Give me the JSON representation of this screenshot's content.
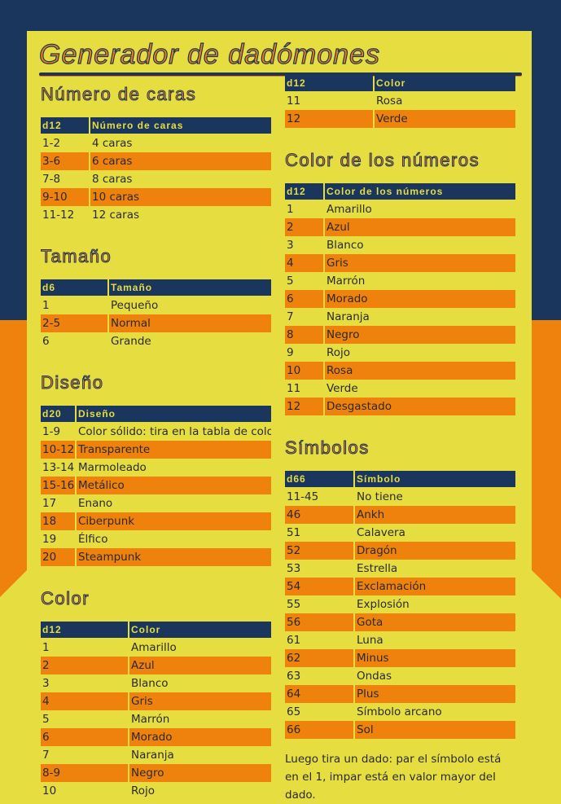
{
  "title": "Generador de dadómones",
  "colors": {
    "navy": "#1b365d",
    "orange": "#ef820d",
    "yellow": "#e6de40"
  },
  "left": [
    {
      "heading": "Número de caras",
      "c1w": 59,
      "headers": [
        "d12",
        "Número de caras"
      ],
      "rows": [
        [
          "1-2",
          "4 caras"
        ],
        [
          "3-6",
          "6 caras"
        ],
        [
          "7-8",
          "8 caras"
        ],
        [
          "9-10",
          "10 caras"
        ],
        [
          "11-12",
          "12 caras"
        ]
      ]
    },
    {
      "heading": "Tamaño",
      "c1w": 82,
      "headers": [
        "d6",
        "Tamaño"
      ],
      "rows": [
        [
          "1",
          "Pequeño"
        ],
        [
          "2-5",
          "Normal"
        ],
        [
          "6",
          "Grande"
        ]
      ]
    },
    {
      "heading": "Diseño",
      "c1w": 42,
      "headers": [
        "d20",
        "Diseño"
      ],
      "rows": [
        [
          "1-9",
          "Color sólido: tira en la tabla de color."
        ],
        [
          "10-12",
          "Transparente"
        ],
        [
          "13-14",
          "Marmoleado"
        ],
        [
          "15-16",
          "Metálico"
        ],
        [
          "17",
          "Enano"
        ],
        [
          "18",
          "Ciberpunk"
        ],
        [
          "19",
          "Élfico"
        ],
        [
          "20",
          "Steampunk"
        ]
      ]
    },
    {
      "heading": "Color",
      "c1w": 107,
      "headers": [
        "d12",
        "Color"
      ],
      "rows": [
        [
          "1",
          "Amarillo"
        ],
        [
          "2",
          "Azul"
        ],
        [
          "3",
          "Blanco"
        ],
        [
          "4",
          "Gris"
        ],
        [
          "5",
          "Marrón"
        ],
        [
          "6",
          "Morado"
        ],
        [
          "7",
          "Naranja"
        ],
        [
          "8-9",
          "Negro"
        ],
        [
          "10",
          "Rojo"
        ]
      ]
    }
  ],
  "right": [
    {
      "heading": "",
      "c1w": 108,
      "headers": [
        "d12",
        "Color"
      ],
      "rows": [
        [
          "11",
          "Rosa"
        ],
        [
          "12",
          "Verde"
        ]
      ]
    },
    {
      "heading": "Color de los números",
      "c1w": 47,
      "headers": [
        "d12",
        "Color de los números"
      ],
      "rows": [
        [
          "1",
          "Amarillo"
        ],
        [
          "2",
          "Azul"
        ],
        [
          "3",
          "Blanco"
        ],
        [
          "4",
          "Gris"
        ],
        [
          "5",
          "Marrón"
        ],
        [
          "6",
          "Morado"
        ],
        [
          "7",
          "Naranja"
        ],
        [
          "8",
          "Negro"
        ],
        [
          "9",
          "Rojo"
        ],
        [
          "10",
          "Rosa"
        ],
        [
          "11",
          "Verde"
        ],
        [
          "12",
          "Desgastado"
        ]
      ]
    },
    {
      "heading": "Símbolos",
      "c1w": 84,
      "headers": [
        "d66",
        "Símbolo"
      ],
      "rows": [
        [
          "11-45",
          "No tiene"
        ],
        [
          "46",
          "Ankh"
        ],
        [
          "51",
          "Calavera"
        ],
        [
          "52",
          "Dragón"
        ],
        [
          "53",
          "Estrella"
        ],
        [
          "54",
          "Exclamación"
        ],
        [
          "55",
          "Explosión"
        ],
        [
          "56",
          "Gota"
        ],
        [
          "61",
          "Luna"
        ],
        [
          "62",
          "Minus"
        ],
        [
          "63",
          "Ondas"
        ],
        [
          "64",
          "Plus"
        ],
        [
          "65",
          "Símbolo arcano"
        ],
        [
          "66",
          "Sol"
        ]
      ]
    }
  ],
  "note": "Luego tira un dado: par el símbolo está en el 1, impar está en valor mayor del dado."
}
